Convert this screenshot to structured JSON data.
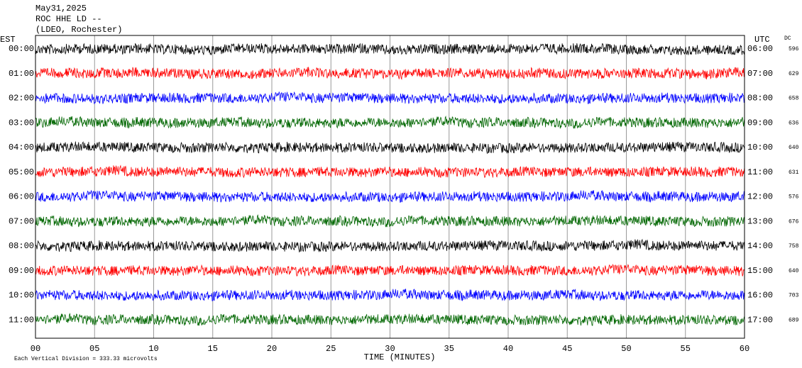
{
  "chart_data": {
    "type": "seismogram",
    "title_lines": [
      "May31,2025",
      "ROC HHE LD --",
      "(LDEO, Rochester)"
    ],
    "left_axis_label": "EST",
    "right_axis_label": "UTC",
    "dc_label": "DC",
    "x_label": "TIME (MINUTES)",
    "footnote": "Each Vertical Division =  333.33 microvolts",
    "xlim": [
      0,
      60
    ],
    "xticks": [
      {
        "value": 0,
        "label": "00"
      },
      {
        "value": 5,
        "label": "05"
      },
      10,
      15,
      20,
      25,
      30,
      35,
      40,
      45,
      50,
      55,
      60
    ],
    "grid": true,
    "series": [
      {
        "name": "00:00",
        "utc": "06:00",
        "dc": 596,
        "color": "#000000"
      },
      {
        "name": "01:00",
        "utc": "07:00",
        "dc": 629,
        "color": "#ff0000"
      },
      {
        "name": "02:00",
        "utc": "08:00",
        "dc": 658,
        "color": "#0000ff"
      },
      {
        "name": "03:00",
        "utc": "09:00",
        "dc": 636,
        "color": "#006600"
      },
      {
        "name": "04:00",
        "utc": "10:00",
        "dc": 640,
        "color": "#000000"
      },
      {
        "name": "05:00",
        "utc": "11:00",
        "dc": 631,
        "color": "#ff0000"
      },
      {
        "name": "06:00",
        "utc": "12:00",
        "dc": 576,
        "color": "#0000ff"
      },
      {
        "name": "07:00",
        "utc": "13:00",
        "dc": 676,
        "color": "#006600"
      },
      {
        "name": "08:00",
        "utc": "14:00",
        "dc": 758,
        "color": "#000000"
      },
      {
        "name": "09:00",
        "utc": "15:00",
        "dc": 640,
        "color": "#ff0000"
      },
      {
        "name": "10:00",
        "utc": "16:00",
        "dc": 703,
        "color": "#0000ff"
      },
      {
        "name": "11:00",
        "utc": "17:00",
        "dc": 689,
        "color": "#006600"
      }
    ]
  }
}
